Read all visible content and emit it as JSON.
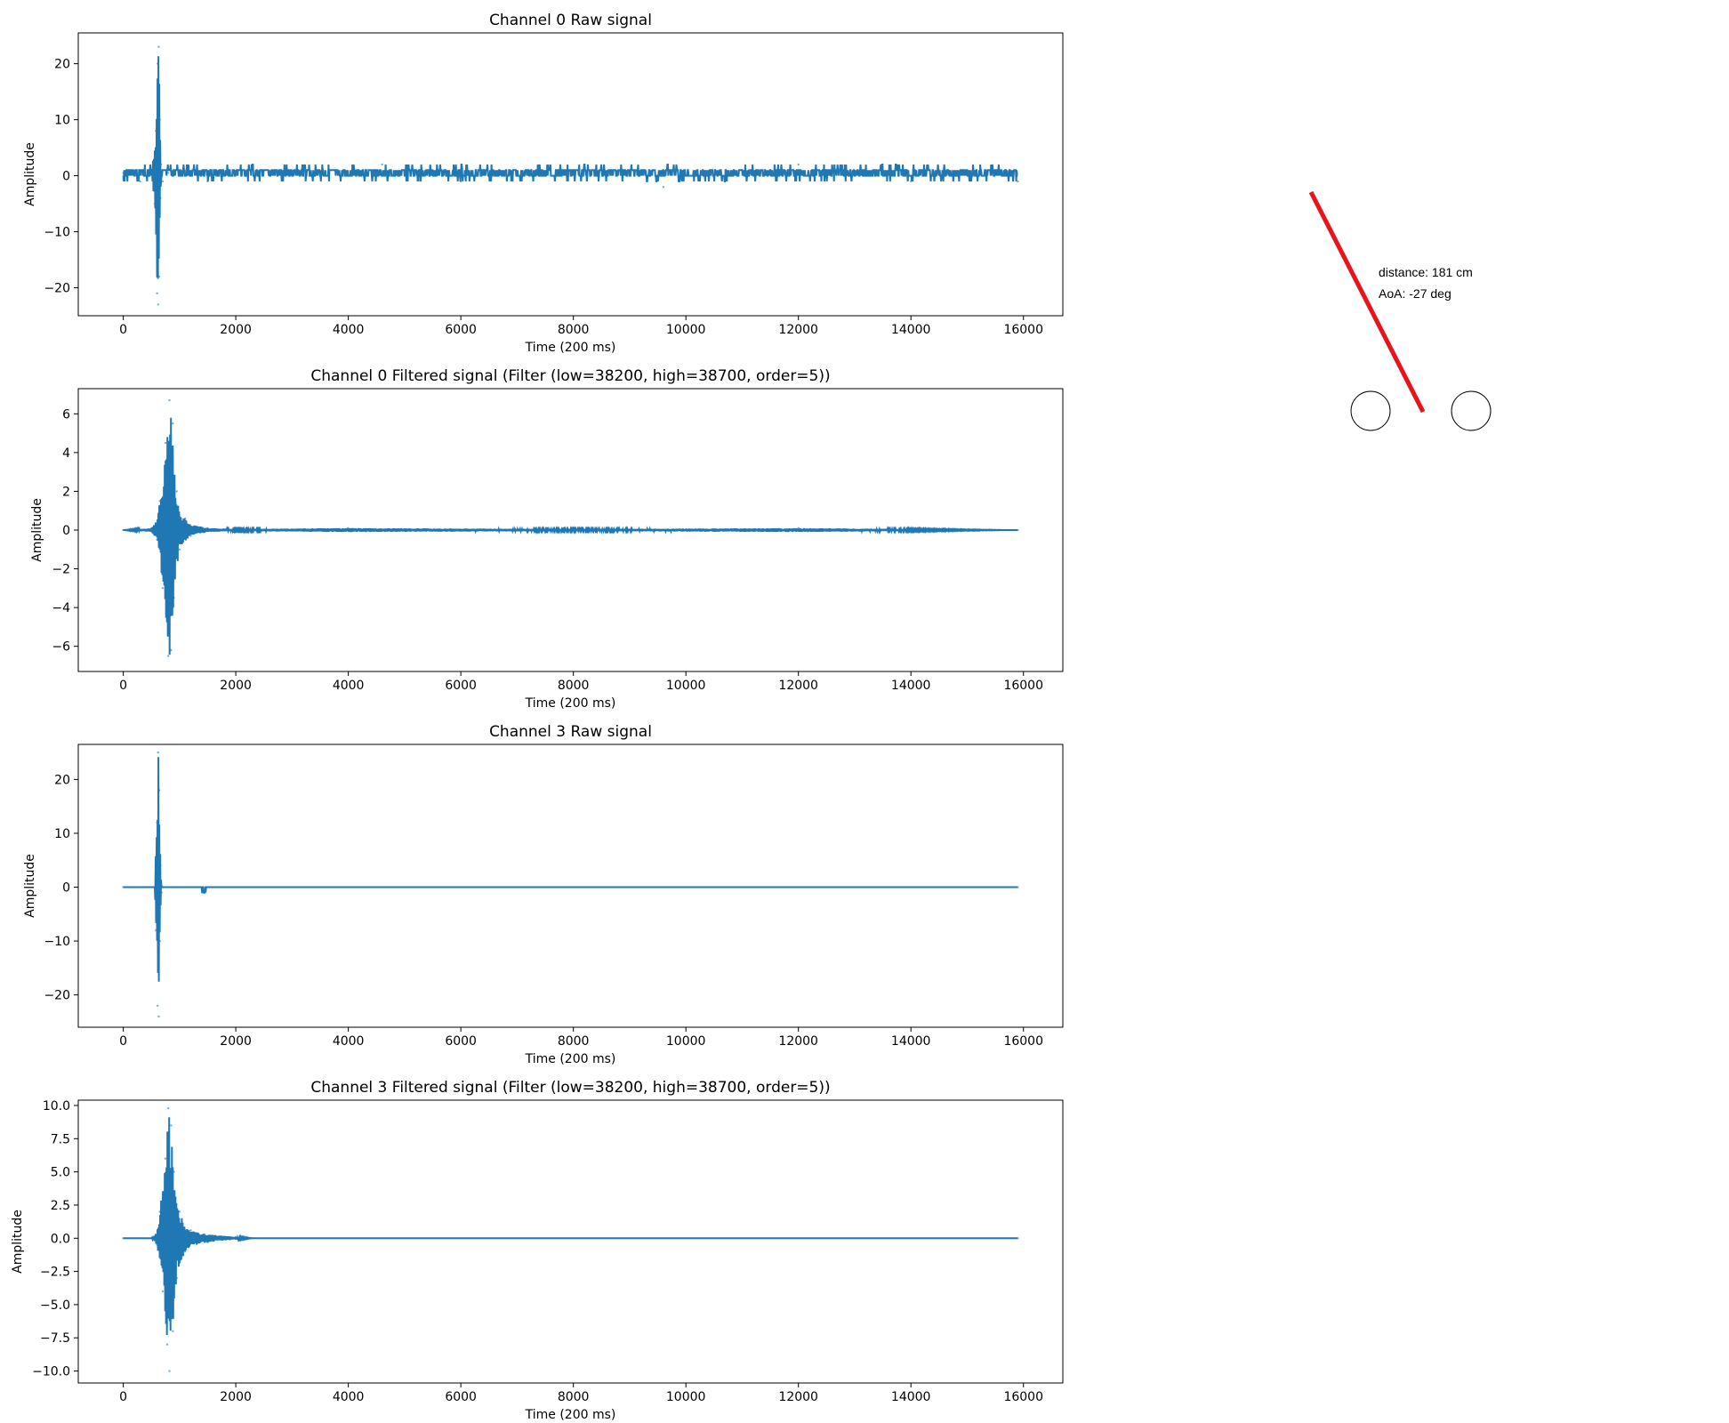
{
  "chart_data": [
    {
      "type": "line",
      "title": "Channel 0 Raw signal",
      "xlabel": "Time (200 ms)",
      "ylabel": "Amplitude",
      "xlim": [
        -800,
        16700
      ],
      "ylim": [
        -25,
        25.5
      ],
      "xticks": [
        0,
        2000,
        4000,
        6000,
        8000,
        10000,
        12000,
        14000,
        16000
      ],
      "xtick_labels": [
        "0",
        "2000",
        "4000",
        "6000",
        "8000",
        "10000",
        "12000",
        "14000",
        "16000"
      ],
      "yticks": [
        -20,
        -10,
        0,
        10,
        20
      ],
      "ytick_labels": [
        "−20",
        "−10",
        "0",
        "10",
        "20"
      ],
      "grid": false,
      "color": "#1f77b4",
      "series": [
        {
          "x": [
            0,
            300,
            500,
            560,
            580,
            600,
            610,
            620,
            630,
            640,
            650,
            660,
            670,
            700,
            800,
            1500,
            3000,
            4600,
            6000,
            8000,
            9600,
            11000,
            12000,
            14000,
            15900
          ],
          "y": [
            0.5,
            -1,
            1,
            -5,
            8,
            -21,
            20,
            -23,
            23,
            -18,
            10,
            -4,
            2,
            -1,
            0.5,
            -1,
            1,
            2,
            -1,
            1,
            -2,
            1,
            2,
            -1,
            -1
          ]
        }
      ]
    },
    {
      "type": "line",
      "title": "Channel 0 Filtered signal (Filter (low=38200, high=38700, order=5))",
      "xlabel": "Time (200 ms)",
      "ylabel": "Amplitude",
      "xlim": [
        -800,
        16700
      ],
      "ylim": [
        -7.3,
        7.3
      ],
      "xticks": [
        0,
        2000,
        4000,
        6000,
        8000,
        10000,
        12000,
        14000,
        16000
      ],
      "xtick_labels": [
        "0",
        "2000",
        "4000",
        "6000",
        "8000",
        "10000",
        "12000",
        "14000",
        "16000"
      ],
      "yticks": [
        -6,
        -4,
        -2,
        0,
        2,
        4,
        6
      ],
      "ytick_labels": [
        "−6",
        "−4",
        "−2",
        "0",
        "2",
        "4",
        "6"
      ],
      "grid": false,
      "color": "#1f77b4",
      "series": [
        {
          "x": [
            0,
            500,
            600,
            650,
            700,
            750,
            800,
            820,
            850,
            880,
            900,
            950,
            1000,
            1100,
            1200,
            1500,
            2000,
            4000,
            8000,
            12000,
            15900
          ],
          "y": [
            0,
            0.1,
            -0.5,
            1.5,
            -3,
            4.5,
            -6.5,
            6.7,
            -6.2,
            5.5,
            -3.5,
            2,
            -1,
            0.6,
            -0.3,
            0.1,
            0.05,
            0.1,
            0.05,
            0.1,
            0
          ]
        }
      ]
    },
    {
      "type": "line",
      "title": "Channel 3 Raw signal",
      "xlabel": "Time (200 ms)",
      "ylabel": "Amplitude",
      "xlim": [
        -800,
        16700
      ],
      "ylim": [
        -26,
        26.5
      ],
      "xticks": [
        0,
        2000,
        4000,
        6000,
        8000,
        10000,
        12000,
        14000,
        16000
      ],
      "xtick_labels": [
        "0",
        "2000",
        "4000",
        "6000",
        "8000",
        "10000",
        "12000",
        "14000",
        "16000"
      ],
      "yticks": [
        -20,
        -10,
        0,
        10,
        20
      ],
      "ytick_labels": [
        "−20",
        "−10",
        "0",
        "10",
        "20"
      ],
      "grid": false,
      "color": "#1f77b4",
      "series": [
        {
          "x": [
            0,
            560,
            580,
            600,
            610,
            620,
            630,
            640,
            650,
            660,
            680,
            700,
            1400,
            1420,
            1440,
            1460,
            15900
          ],
          "y": [
            0,
            0,
            -8,
            12,
            -22,
            25,
            -24,
            18,
            -10,
            4,
            -1,
            0,
            -1,
            0,
            -1,
            0,
            0
          ]
        }
      ]
    },
    {
      "type": "line",
      "title": "Channel 3 Filtered signal (Filter (low=38200, high=38700, order=5))",
      "xlabel": "Time (200 ms)",
      "ylabel": "Amplitude",
      "xlim": [
        -800,
        16700
      ],
      "ylim": [
        -10.9,
        10.4
      ],
      "xticks": [
        0,
        2000,
        4000,
        6000,
        8000,
        10000,
        12000,
        14000,
        16000
      ],
      "xtick_labels": [
        "0",
        "2000",
        "4000",
        "6000",
        "8000",
        "10000",
        "12000",
        "14000",
        "16000"
      ],
      "yticks": [
        -10.0,
        -7.5,
        -5.0,
        -2.5,
        0.0,
        2.5,
        5.0,
        7.5,
        10.0
      ],
      "ytick_labels": [
        "−10.0",
        "−7.5",
        "−5.0",
        "−2.5",
        "0.0",
        "2.5",
        "5.0",
        "7.5",
        "10.0"
      ],
      "grid": false,
      "color": "#1f77b4",
      "series": [
        {
          "x": [
            0,
            500,
            600,
            650,
            700,
            750,
            780,
            800,
            820,
            850,
            880,
            900,
            950,
            1000,
            1100,
            1200,
            1500,
            2000,
            2300,
            15900
          ],
          "y": [
            0,
            0,
            -0.5,
            2,
            -4,
            6,
            -8,
            9.8,
            -10,
            8.5,
            -7,
            5,
            -3,
            2,
            -1,
            0.6,
            -0.3,
            0.1,
            0,
            0
          ]
        }
      ]
    }
  ],
  "geometry": {
    "annotation_lines": [
      "distance: 181 cm",
      "AoA: -27 deg"
    ],
    "line_color": "#e8141c",
    "sensor_circles": 2
  }
}
